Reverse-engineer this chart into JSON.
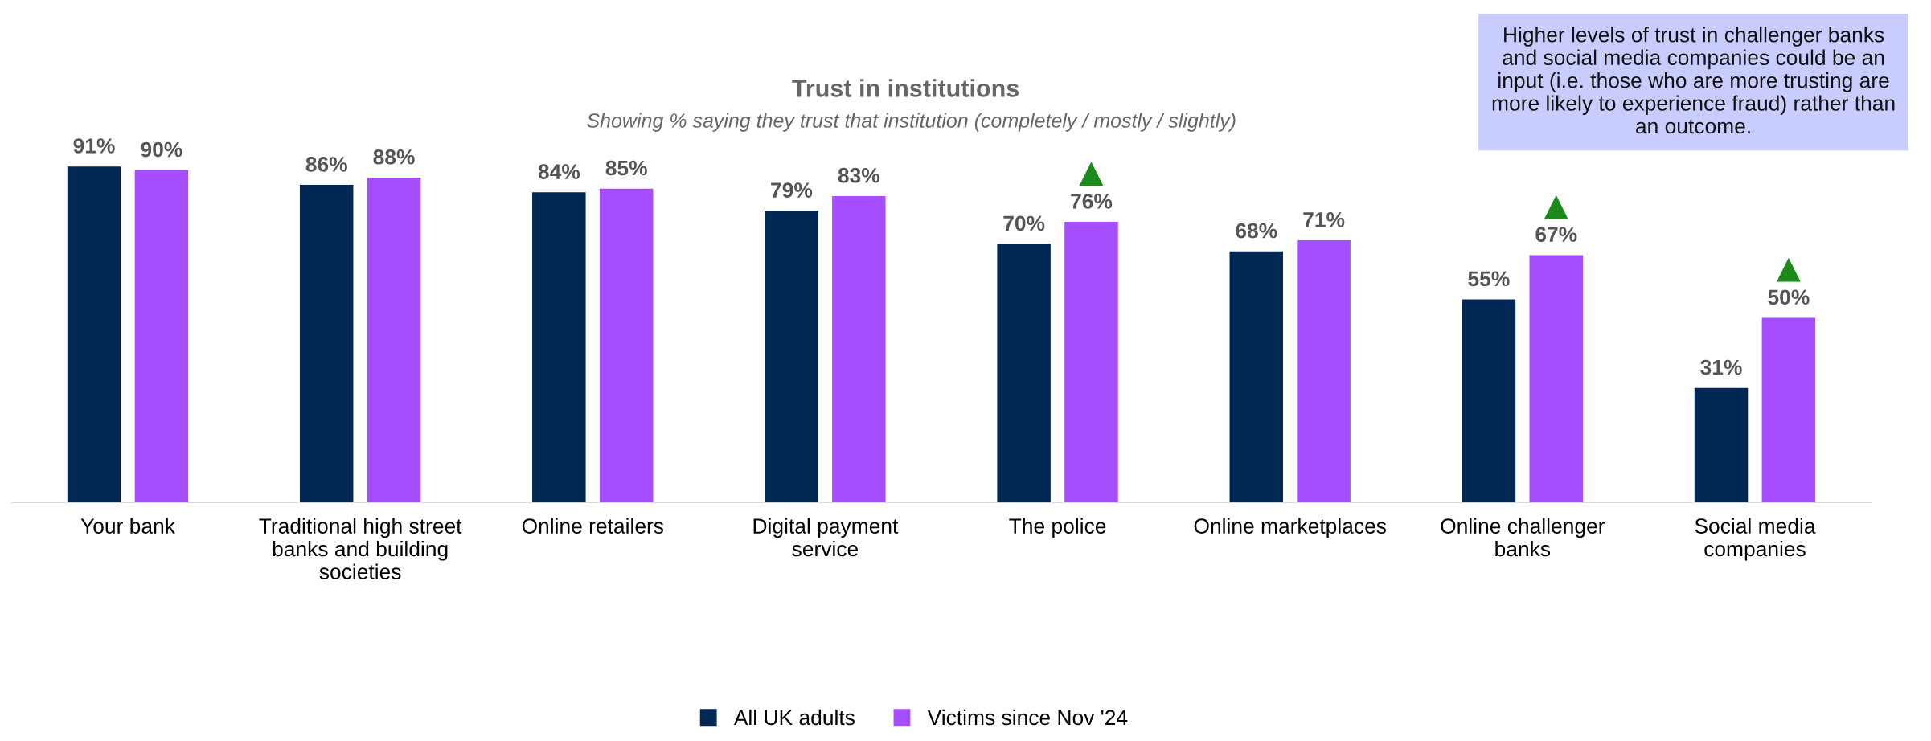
{
  "chart_data": {
    "type": "bar",
    "title": "Trust in institutions",
    "subtitle": "Showing % saying they trust that institution (completely / mostly / slightly)",
    "categories": [
      "Your bank",
      "Traditional high street\nbanks and building\nsocieties",
      "Online retailers",
      "Digital payment\nservice",
      "The police",
      "Online marketplaces",
      "Online challenger\nbanks",
      "Social media\ncompanies"
    ],
    "series": [
      {
        "name": "All UK adults",
        "color": "#002855",
        "values": [
          91,
          86,
          84,
          79,
          70,
          68,
          55,
          31
        ],
        "value_labels": [
          "91%",
          "86%",
          "84%",
          "79%",
          "70%",
          "68%",
          "55%",
          "31%"
        ]
      },
      {
        "name": "Victims since Nov '24",
        "color": "#a64dff",
        "values": [
          90,
          88,
          85,
          83,
          76,
          71,
          67,
          50
        ],
        "value_labels": [
          "90%",
          "88%",
          "85%",
          "83%",
          "▲\n76%",
          "71%",
          "▲\n67%",
          "▲\n50%"
        ]
      }
    ],
    "tick_labels": "x",
    "grid": false,
    "legend": "bottom",
    "annotations": [
      "Higher levels of trust in challenger banks\nand social media companies could be an\ninput (i.e. those who are more trusting are\nmore likely to experience fraud) rather than\nan outcome."
    ]
  }
}
